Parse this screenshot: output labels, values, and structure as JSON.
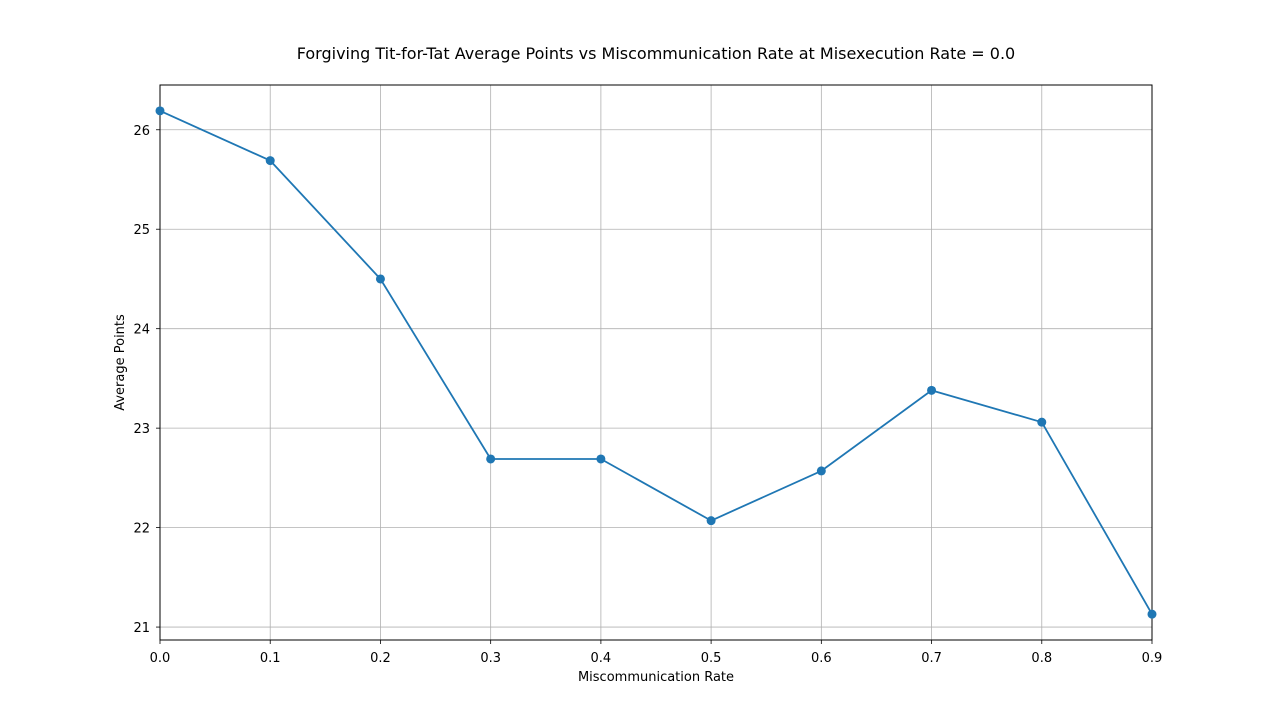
{
  "chart_data": {
    "type": "line",
    "title": "Forgiving Tit-for-Tat Average Points vs Miscommunication Rate at Misexecution Rate = 0.0",
    "xlabel": "Miscommunication Rate",
    "ylabel": "Average Points",
    "xlim": [
      0.0,
      0.9
    ],
    "ylim": [
      20.87,
      26.45
    ],
    "xticks": [
      "0.0",
      "0.1",
      "0.2",
      "0.3",
      "0.4",
      "0.5",
      "0.6",
      "0.7",
      "0.8",
      "0.9"
    ],
    "yticks": [
      "21",
      "22",
      "23",
      "24",
      "25",
      "26"
    ],
    "grid": true,
    "series": [
      {
        "color": "#1f77b4",
        "marker": "circle",
        "x": [
          0.0,
          0.1,
          0.2,
          0.3,
          0.4,
          0.5,
          0.6,
          0.7,
          0.8,
          0.9
        ],
        "y": [
          26.19,
          25.69,
          24.5,
          22.69,
          22.69,
          22.07,
          22.57,
          23.38,
          23.06,
          21.13
        ]
      }
    ]
  }
}
